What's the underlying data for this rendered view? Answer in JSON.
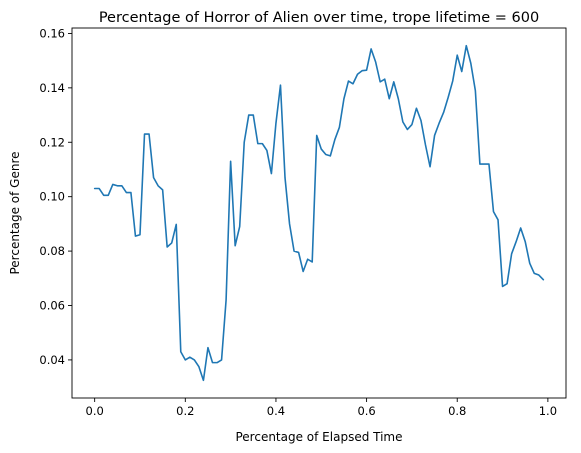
{
  "chart_data": {
    "type": "line",
    "title": "Percentage of Horror of Alien over time, trope lifetime = 600",
    "xlabel": "Percentage of Elapsed Time",
    "ylabel": "Percentage of Genre",
    "xlim": [
      -0.05,
      1.04
    ],
    "ylim": [
      0.026,
      0.162
    ],
    "xticks": [
      0.0,
      0.2,
      0.4,
      0.6,
      0.8,
      1.0
    ],
    "xtick_labels": [
      "0.0",
      "0.2",
      "0.4",
      "0.6",
      "0.8",
      "1.0"
    ],
    "yticks": [
      0.04,
      0.06,
      0.08,
      0.1,
      0.12,
      0.14,
      0.16
    ],
    "ytick_labels": [
      "0.04",
      "0.06",
      "0.08",
      "0.10",
      "0.12",
      "0.14",
      "0.16"
    ],
    "grid": false,
    "line_color": "#1f77b4",
    "series": [
      {
        "x": [
          0.0,
          0.01,
          0.02,
          0.03,
          0.04,
          0.05,
          0.06,
          0.07,
          0.08,
          0.09,
          0.1,
          0.11,
          0.12,
          0.13,
          0.14,
          0.15,
          0.16,
          0.17,
          0.18,
          0.19,
          0.2,
          0.21,
          0.22,
          0.23,
          0.24,
          0.25,
          0.26,
          0.27,
          0.28,
          0.29,
          0.3,
          0.31,
          0.32,
          0.33,
          0.34,
          0.35,
          0.36,
          0.37,
          0.38,
          0.39,
          0.4,
          0.41,
          0.42,
          0.43,
          0.44,
          0.45,
          0.46,
          0.47,
          0.48,
          0.49,
          0.5,
          0.51,
          0.52,
          0.53,
          0.54,
          0.55,
          0.56,
          0.57,
          0.58,
          0.59,
          0.6,
          0.61,
          0.62,
          0.63,
          0.64,
          0.65,
          0.66,
          0.67,
          0.68,
          0.69,
          0.7,
          0.71,
          0.72,
          0.73,
          0.74,
          0.75,
          0.76,
          0.77,
          0.78,
          0.79,
          0.8,
          0.81,
          0.82,
          0.83,
          0.84,
          0.85,
          0.86,
          0.87,
          0.88,
          0.89,
          0.9,
          0.91,
          0.92,
          0.93,
          0.94,
          0.95,
          0.96,
          0.97,
          0.98,
          0.99
        ],
        "values": [
          0.103,
          0.103,
          0.1005,
          0.1005,
          0.1045,
          0.104,
          0.104,
          0.1015,
          0.1015,
          0.0855,
          0.086,
          0.123,
          0.123,
          0.107,
          0.104,
          0.1025,
          0.0815,
          0.083,
          0.0898,
          0.043,
          0.04,
          0.041,
          0.04,
          0.0375,
          0.0325,
          0.0445,
          0.039,
          0.039,
          0.04,
          0.062,
          0.113,
          0.082,
          0.089,
          0.12,
          0.13,
          0.13,
          0.1195,
          0.1195,
          0.117,
          0.1085,
          0.127,
          0.141,
          0.107,
          0.09,
          0.08,
          0.0795,
          0.0725,
          0.077,
          0.076,
          0.1225,
          0.1175,
          0.1155,
          0.115,
          0.121,
          0.1255,
          0.136,
          0.1425,
          0.1415,
          0.145,
          0.1463,
          0.1465,
          0.1543,
          0.1495,
          0.1422,
          0.1432,
          0.136,
          0.1422,
          0.136,
          0.1275,
          0.1247,
          0.1265,
          0.1325,
          0.128,
          0.119,
          0.111,
          0.1225,
          0.127,
          0.131,
          0.1365,
          0.1425,
          0.152,
          0.146,
          0.1555,
          0.149,
          0.139,
          0.112,
          0.112,
          0.112,
          0.0945,
          0.0915,
          0.067,
          0.068,
          0.079,
          0.0835,
          0.0885,
          0.0835,
          0.0755,
          0.0718,
          0.0712,
          0.0695
        ]
      }
    ]
  }
}
